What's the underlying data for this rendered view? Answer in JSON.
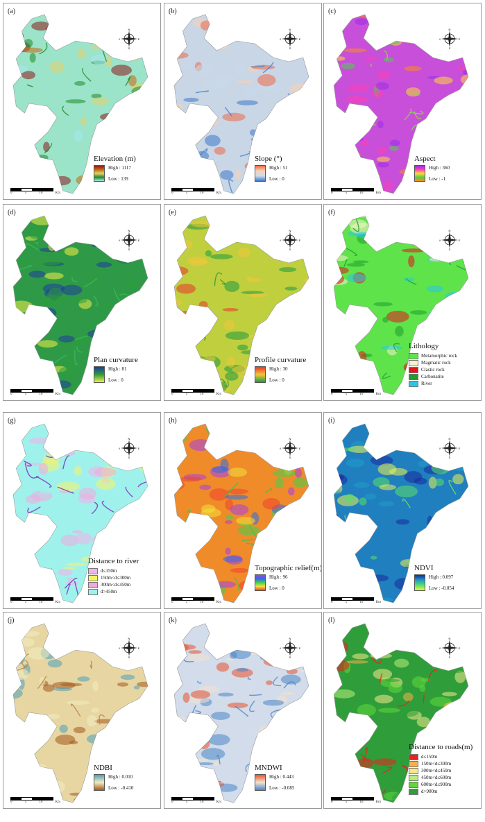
{
  "panels": [
    {
      "label": "(a)",
      "title": "Elevation (m)",
      "high": "High : 1117",
      "low": "Low : 139",
      "gradient": [
        "#8b1a1a",
        "#c4690f",
        "#e6d26a",
        "#1e8c26",
        "#a6e8ee"
      ],
      "fill": "#9be3c9",
      "accent": "#1e8c26"
    },
    {
      "label": "(b)",
      "title": "Slope (°)",
      "high": "High : 51",
      "low": "Low : 0",
      "gradient": [
        "#ef6a45",
        "#f7d2b6",
        "#cbdbe9",
        "#3f78c6"
      ],
      "fill": "#c8d6e6",
      "accent": "#3f7fd1"
    },
    {
      "label": "(c)",
      "title": "Aspect",
      "high": "High : 360",
      "low": "Low : -1",
      "gradient": [
        "#9b2ee8",
        "#ff3fb4",
        "#ffd93b",
        "#4ed04f",
        "#ff8a1e"
      ],
      "fill": "#c84fd9",
      "accent": "#8cd94a"
    },
    {
      "label": "(d)",
      "title": "Plan curvature",
      "high": "High : 81",
      "low": "Low : 0",
      "gradient": [
        "#1f3c9e",
        "#2e9d3b",
        "#f4ee49"
      ],
      "fill": "#2e9a47",
      "accent": "#3bbd52"
    },
    {
      "label": "(e)",
      "title": "Profile curvature",
      "high": "High : 30",
      "low": "Low : 0",
      "gradient": [
        "#e8372b",
        "#f3c63a",
        "#1f9a3f"
      ],
      "fill": "#bfcf3e",
      "accent": "#2d9a3a"
    },
    {
      "label": "(f)",
      "title": "Lithology",
      "categories": [
        {
          "label": "Metamorphic rock",
          "color": "#5ee34b"
        },
        {
          "label": "Magmatic rock",
          "color": "#f8f3c9"
        },
        {
          "label": "Clastic rock",
          "color": "#e3141c"
        },
        {
          "label": "Carbonatite",
          "color": "#1f9d2d"
        },
        {
          "label": "River",
          "color": "#2ac6ea"
        }
      ],
      "fill": "#5ee34b",
      "accent": "#1f9d2d"
    },
    {
      "label": "(g)",
      "title": "Distance to river",
      "categories": [
        {
          "label": "d≤150m",
          "color": "#f2b2ea"
        },
        {
          "label": "150m<d≤300m",
          "color": "#f5f36b"
        },
        {
          "label": "300m<d≤450m",
          "color": "#f0a9de"
        },
        {
          "label": "d>450m",
          "color": "#9ff2ec"
        }
      ],
      "fill": "#9ff2ec",
      "accent": "#7b2bb8"
    },
    {
      "label": "(h)",
      "title": "Topographic relief(m)",
      "high": "High : 96",
      "low": "Low : 0",
      "gradient": [
        "#a440e6",
        "#2f6fe0",
        "#43d24c",
        "#f2e13b",
        "#f0432b"
      ],
      "fill": "#f08b2a",
      "accent": "#3fc14d"
    },
    {
      "label": "(i)",
      "title": "NDVI",
      "high": "High : 0.097",
      "low": "Low : -0.054",
      "gradient": [
        "#172c9c",
        "#1f9cc8",
        "#5be066",
        "#eef252"
      ],
      "fill": "#1f7fbf",
      "accent": "#7be35a"
    },
    {
      "label": "(j)",
      "title": "NDBI",
      "high": "High : 0.010",
      "low": "Low : -0.410",
      "gradient": [
        "#4fa0b9",
        "#f1ecc0",
        "#a45a1f"
      ],
      "fill": "#e7d6a2",
      "accent": "#b78346"
    },
    {
      "label": "(k)",
      "title": "MNDWI",
      "high": "High : 0.443",
      "low": "Low : -0.085",
      "gradient": [
        "#e8542c",
        "#f1e2cf",
        "#4a86c6"
      ],
      "fill": "#d2dcea",
      "accent": "#4a86c6"
    },
    {
      "label": "(l)",
      "title": "Distance to roads(m)",
      "categories": [
        {
          "label": "d≤150m",
          "color": "#e8221c"
        },
        {
          "label": "150m<d≤300m",
          "color": "#f8b04a"
        },
        {
          "label": "300m<d≤450m",
          "color": "#f6e98c"
        },
        {
          "label": "450m<d≤600m",
          "color": "#b8ee7c"
        },
        {
          "label": "600m<d≤900m",
          "color": "#5fd83a"
        },
        {
          "label": "d>900m",
          "color": "#2f9e3a"
        }
      ],
      "fill": "#2f9e3a",
      "accent": "#e8221c"
    }
  ],
  "compass": {
    "n": "N",
    "s": "S",
    "e": "E",
    "w": "W"
  },
  "scalebar": {
    "t0": "0",
    "t1": "5",
    "t2": "10",
    "unit": "Km"
  }
}
